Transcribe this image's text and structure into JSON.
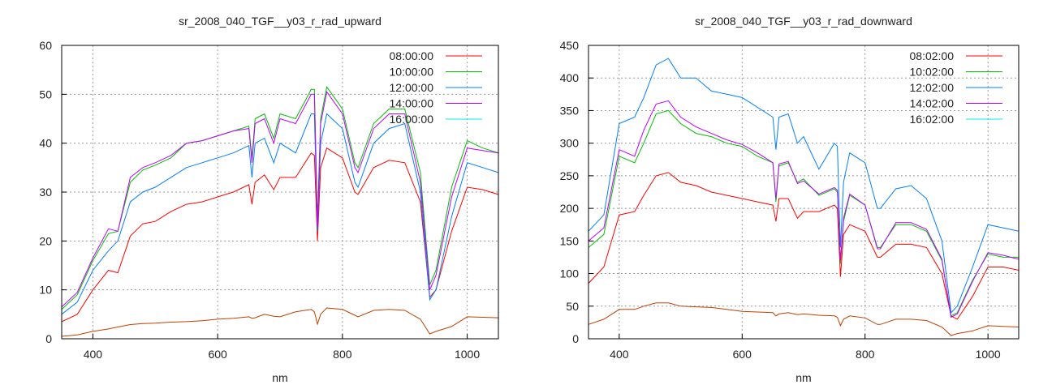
{
  "chart_data": [
    {
      "type": "line",
      "title": "sr_2008_040_TGF__y03_r_rad_upward",
      "xlabel": "nm",
      "ylabel": "",
      "xlim": [
        350,
        1050
      ],
      "ylim": [
        0,
        60
      ],
      "xticks": [
        400,
        600,
        800,
        1000
      ],
      "yticks": [
        0,
        10,
        20,
        30,
        40,
        50,
        60
      ],
      "grid": true,
      "legend": "top-right",
      "x": [
        350,
        375,
        400,
        425,
        440,
        460,
        480,
        500,
        525,
        550,
        575,
        600,
        625,
        650,
        655,
        660,
        675,
        690,
        700,
        725,
        750,
        755,
        760,
        765,
        775,
        800,
        820,
        825,
        850,
        875,
        900,
        925,
        940,
        950,
        975,
        1000,
        1025,
        1050
      ],
      "series": [
        {
          "name": "08:00:00",
          "color": "#ff0000",
          "values": [
            3.5,
            5,
            10,
            14,
            13.5,
            21,
            23.5,
            24,
            26,
            27.5,
            28,
            29,
            30,
            31.5,
            27.5,
            32,
            33.5,
            30.5,
            33,
            33,
            38,
            37.5,
            20,
            35,
            39,
            37,
            30,
            29.5,
            35,
            36.5,
            36,
            28,
            8.5,
            10,
            22,
            31,
            30.5,
            29.5
          ]
        },
        {
          "name": "10:00:00",
          "color": "#00c000",
          "values": [
            6,
            9,
            16,
            21.5,
            22,
            32,
            34.5,
            35.5,
            37,
            40,
            40.5,
            41.5,
            42.5,
            43.5,
            37,
            45,
            46,
            41,
            46,
            45,
            51,
            51,
            24,
            45,
            51.5,
            47,
            36,
            35,
            44,
            47,
            47,
            34,
            11,
            14,
            31,
            40.5,
            39,
            38
          ]
        },
        {
          "name": "12:00:00",
          "color": "#0080ff",
          "values": [
            5,
            7.5,
            14,
            18,
            20,
            28,
            30,
            31,
            33,
            35,
            36,
            37,
            38,
            39.5,
            33,
            40,
            41,
            36,
            40,
            38,
            46,
            46,
            22,
            40,
            46,
            43,
            32,
            31,
            40,
            43,
            44,
            30,
            8,
            10,
            25,
            36,
            35,
            34
          ]
        },
        {
          "name": "14:00:00",
          "color": "#c000ff",
          "values": [
            6.5,
            9.5,
            16.5,
            22.5,
            22,
            33,
            35,
            36,
            37.5,
            40,
            40.5,
            41.5,
            42.5,
            43,
            36,
            44,
            45,
            40,
            45,
            44,
            50,
            50,
            23,
            44,
            50.5,
            46,
            35,
            34,
            43,
            46,
            46,
            32,
            10,
            13,
            29,
            39,
            38.5,
            38
          ]
        },
        {
          "name": "16:00:00",
          "color": "#00eeee",
          "line_color": "#c04000",
          "values": [
            0.5,
            0.8,
            1.5,
            2,
            2.4,
            2.9,
            3.1,
            3.2,
            3.4,
            3.5,
            3.7,
            4,
            4.2,
            4.5,
            4.2,
            4.3,
            5,
            4.6,
            4.5,
            5.5,
            6,
            5.5,
            3,
            5,
            6.3,
            6,
            4.8,
            4.5,
            5.8,
            6,
            5.8,
            4,
            1,
            1.5,
            2.5,
            4.5,
            4.4,
            4.3
          ]
        }
      ]
    },
    {
      "type": "line",
      "title": "sr_2008_040_TGF__y03_r_rad_downward",
      "xlabel": "nm",
      "ylabel": "",
      "xlim": [
        350,
        1050
      ],
      "ylim": [
        0,
        450
      ],
      "xticks": [
        400,
        600,
        800,
        1000
      ],
      "yticks": [
        0,
        50,
        100,
        150,
        200,
        250,
        300,
        350,
        400,
        450
      ],
      "grid": true,
      "legend": "top-right",
      "x": [
        350,
        375,
        400,
        425,
        440,
        460,
        480,
        500,
        525,
        550,
        575,
        600,
        625,
        650,
        655,
        660,
        675,
        690,
        700,
        725,
        750,
        755,
        760,
        765,
        775,
        800,
        820,
        825,
        850,
        875,
        900,
        925,
        940,
        950,
        975,
        1000,
        1025,
        1050
      ],
      "series": [
        {
          "name": "08:02:00",
          "color": "#ff0000",
          "values": [
            85,
            110,
            190,
            195,
            220,
            250,
            255,
            240,
            235,
            225,
            220,
            215,
            210,
            205,
            180,
            215,
            215,
            185,
            195,
            195,
            205,
            200,
            95,
            160,
            175,
            165,
            125,
            125,
            145,
            145,
            140,
            100,
            35,
            30,
            65,
            110,
            110,
            105
          ]
        },
        {
          "name": "10:02:00",
          "color": "#00c000",
          "values": [
            140,
            160,
            280,
            270,
            300,
            345,
            350,
            330,
            315,
            310,
            300,
            295,
            280,
            270,
            210,
            265,
            270,
            240,
            245,
            220,
            230,
            225,
            115,
            180,
            220,
            205,
            140,
            140,
            175,
            175,
            165,
            120,
            35,
            40,
            90,
            130,
            125,
            125
          ]
        },
        {
          "name": "12:02:00",
          "color": "#0080ff",
          "values": [
            165,
            190,
            330,
            340,
            370,
            420,
            430,
            400,
            400,
            380,
            375,
            370,
            355,
            340,
            290,
            340,
            345,
            300,
            310,
            260,
            300,
            295,
            140,
            240,
            285,
            270,
            200,
            200,
            230,
            235,
            215,
            150,
            40,
            50,
            110,
            175,
            170,
            165
          ]
        },
        {
          "name": "14:02:00",
          "color": "#c000ff",
          "values": [
            150,
            170,
            290,
            280,
            320,
            360,
            365,
            340,
            325,
            315,
            305,
            298,
            285,
            270,
            215,
            268,
            272,
            238,
            242,
            222,
            232,
            228,
            120,
            185,
            222,
            205,
            138,
            138,
            178,
            178,
            168,
            122,
            33,
            38,
            88,
            132,
            128,
            122
          ]
        },
        {
          "name": "16:02:00",
          "color": "#00eeee",
          "line_color": "#c04000",
          "values": [
            22,
            30,
            45,
            45,
            50,
            55,
            55,
            50,
            49,
            48,
            45,
            42,
            41,
            40,
            35,
            38,
            40,
            37,
            38,
            36,
            35,
            33,
            20,
            30,
            35,
            32,
            22,
            22,
            30,
            30,
            28,
            18,
            5,
            8,
            12,
            20,
            19,
            18
          ]
        }
      ]
    }
  ]
}
